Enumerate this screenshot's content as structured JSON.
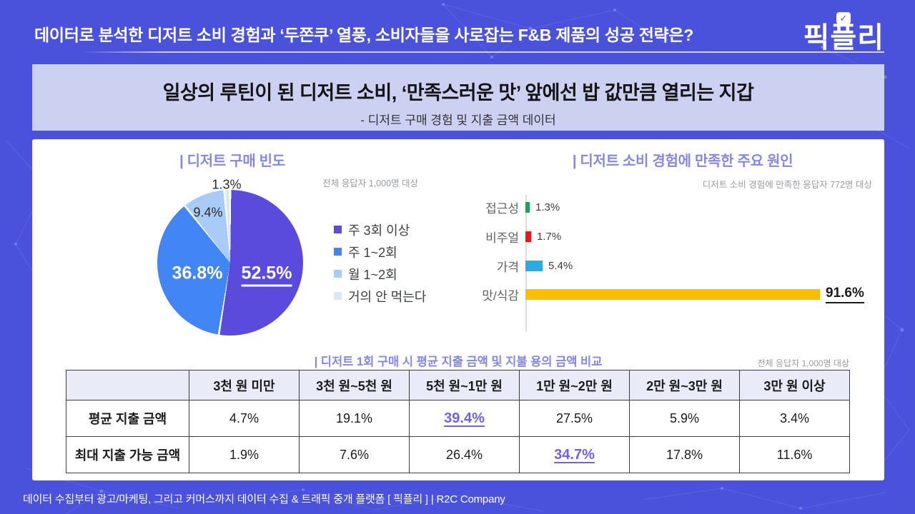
{
  "header": {
    "title": "데이터로 분석한 디저트 소비 경험과 ‘두쫀쿠’ 열풍, 소비자들을 사로잡는 F&B 제품의 성공 전략은?",
    "logo": "픽플리",
    "logo_check": "✓"
  },
  "banner": {
    "title": "일상의 루틴이 된 디저트 소비, ‘만족스러운 맛’ 앞에선 밥 값만큼 열리는 지갑",
    "subtitle": "- 디저트 구매 경험 및 지출 금액 데이터"
  },
  "chart_data": [
    {
      "type": "pie",
      "title": "| 디저트 구매 빈도",
      "note": "전체 응답자 1,000명 대상",
      "labels": [
        "주 3회 이상",
        "주 1~2회",
        "월 1~2회",
        "거의 안 먹는다"
      ],
      "values": [
        52.5,
        36.8,
        9.4,
        1.3
      ],
      "display": [
        "52.5%",
        "36.8%",
        "9.4%",
        "1.3%"
      ],
      "colors": [
        "#5A4BDC",
        "#4285F4",
        "#A9CBF7",
        "#D9E7FB"
      ],
      "legend_position": "right",
      "start_angle_deg": 0,
      "direction": "clockwise"
    },
    {
      "type": "bar",
      "orientation": "horizontal",
      "title": "| 디저트 소비 경험에 만족한 주요 원인",
      "note": "디저트 소비 경험에 만족한 응답자 772명 대상",
      "categories": [
        "접근성",
        "비주얼",
        "가격",
        "맛/식감"
      ],
      "values": [
        1.3,
        1.7,
        5.4,
        91.6
      ],
      "display": [
        "1.3%",
        "1.7%",
        "5.4%",
        "91.6%"
      ],
      "colors": [
        "#14A35A",
        "#EF1418",
        "#29ACE3",
        "#FDBE02"
      ],
      "xlim": [
        0,
        100
      ],
      "grid": false
    },
    {
      "type": "table",
      "title": "| 디저트 1회 구매 시 평균 지출 금액 및 지불 용의 금액 비교",
      "note": "전체 응답자 1,000명 대상",
      "columns": [
        "3천 원 미만",
        "3천 원~5천 원",
        "5천 원~1만 원",
        "1만 원~2만 원",
        "2만 원~3만 원",
        "3만 원 이상"
      ],
      "rows": [
        {
          "label": "평균 지출 금액",
          "values": [
            "4.7%",
            "19.1%",
            "39.4%",
            "27.5%",
            "5.9%",
            "3.4%"
          ],
          "highlight_index": 2
        },
        {
          "label": "최대 지출 가능 금액",
          "values": [
            "1.9%",
            "7.6%",
            "26.4%",
            "34.7%",
            "17.8%",
            "11.6%"
          ],
          "highlight_index": 3
        }
      ],
      "highlight_color": "#7161E8"
    }
  ],
  "footer": {
    "text": "데이터 수집부터 광고/마케팅, 그리고 커머스까지 데이터 수집 & 트래픽 중개 플랫폼 [ 픽플리 ]  |  R2C Company"
  }
}
